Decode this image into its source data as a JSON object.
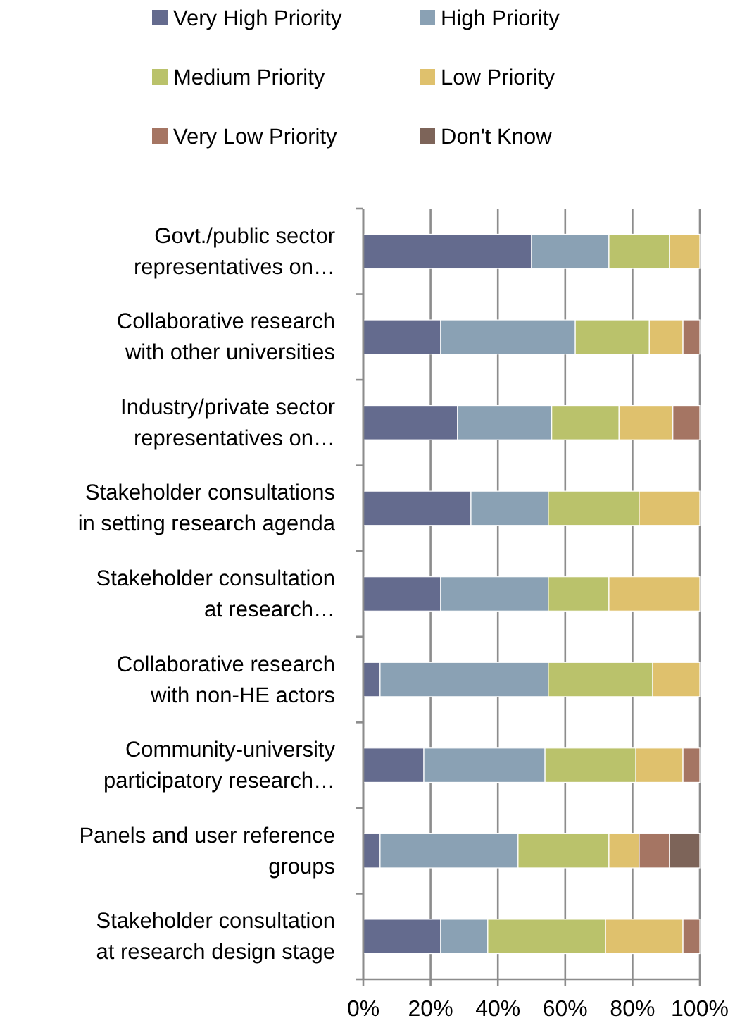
{
  "chart_data": {
    "type": "bar",
    "orientation": "horizontal",
    "stacked": true,
    "legend": "top",
    "grid": "x",
    "categories": [
      "Govt./public sector representatives on…",
      "Collaborative research with other universities",
      "Industry/private sector representatives on…",
      "Stakeholder consultations in setting research agenda",
      "Stakeholder consultation at research…",
      "Collaborative research with non-HE actors",
      "Community-university participatory research…",
      "Panels and user reference groups",
      "Stakeholder consultation at research design stage"
    ],
    "series": [
      {
        "name": "Very High Priority",
        "color": "#646b8e",
        "values": [
          50,
          23,
          28,
          32,
          23,
          5,
          18,
          5,
          23
        ]
      },
      {
        "name": "High Priority",
        "color": "#8aa1b4",
        "values": [
          23,
          40,
          28,
          23,
          32,
          50,
          36,
          41,
          14
        ]
      },
      {
        "name": "Medium Priority",
        "color": "#bac26b",
        "values": [
          18,
          22,
          20,
          27,
          18,
          31,
          27,
          27,
          35
        ]
      },
      {
        "name": "Low Priority",
        "color": "#dfc16d",
        "values": [
          9,
          10,
          16,
          18,
          27,
          14,
          14,
          9,
          23
        ]
      },
      {
        "name": "Very Low Priority",
        "color": "#a57563",
        "values": [
          0,
          5,
          8,
          0,
          0,
          0,
          5,
          9,
          5
        ]
      },
      {
        "name": "Don't Know",
        "color": "#7d6459",
        "values": [
          0,
          0,
          0,
          0,
          0,
          0,
          0,
          9,
          0
        ]
      }
    ],
    "xlim": [
      0,
      100
    ],
    "xticks": [
      {
        "value": 0,
        "label": "0%"
      },
      {
        "value": 20,
        "label": "20%"
      },
      {
        "value": 40,
        "label": "40%"
      },
      {
        "value": 60,
        "label": "60%"
      },
      {
        "value": 80,
        "label": "80%"
      },
      {
        "value": 100,
        "label": "100%"
      }
    ]
  }
}
